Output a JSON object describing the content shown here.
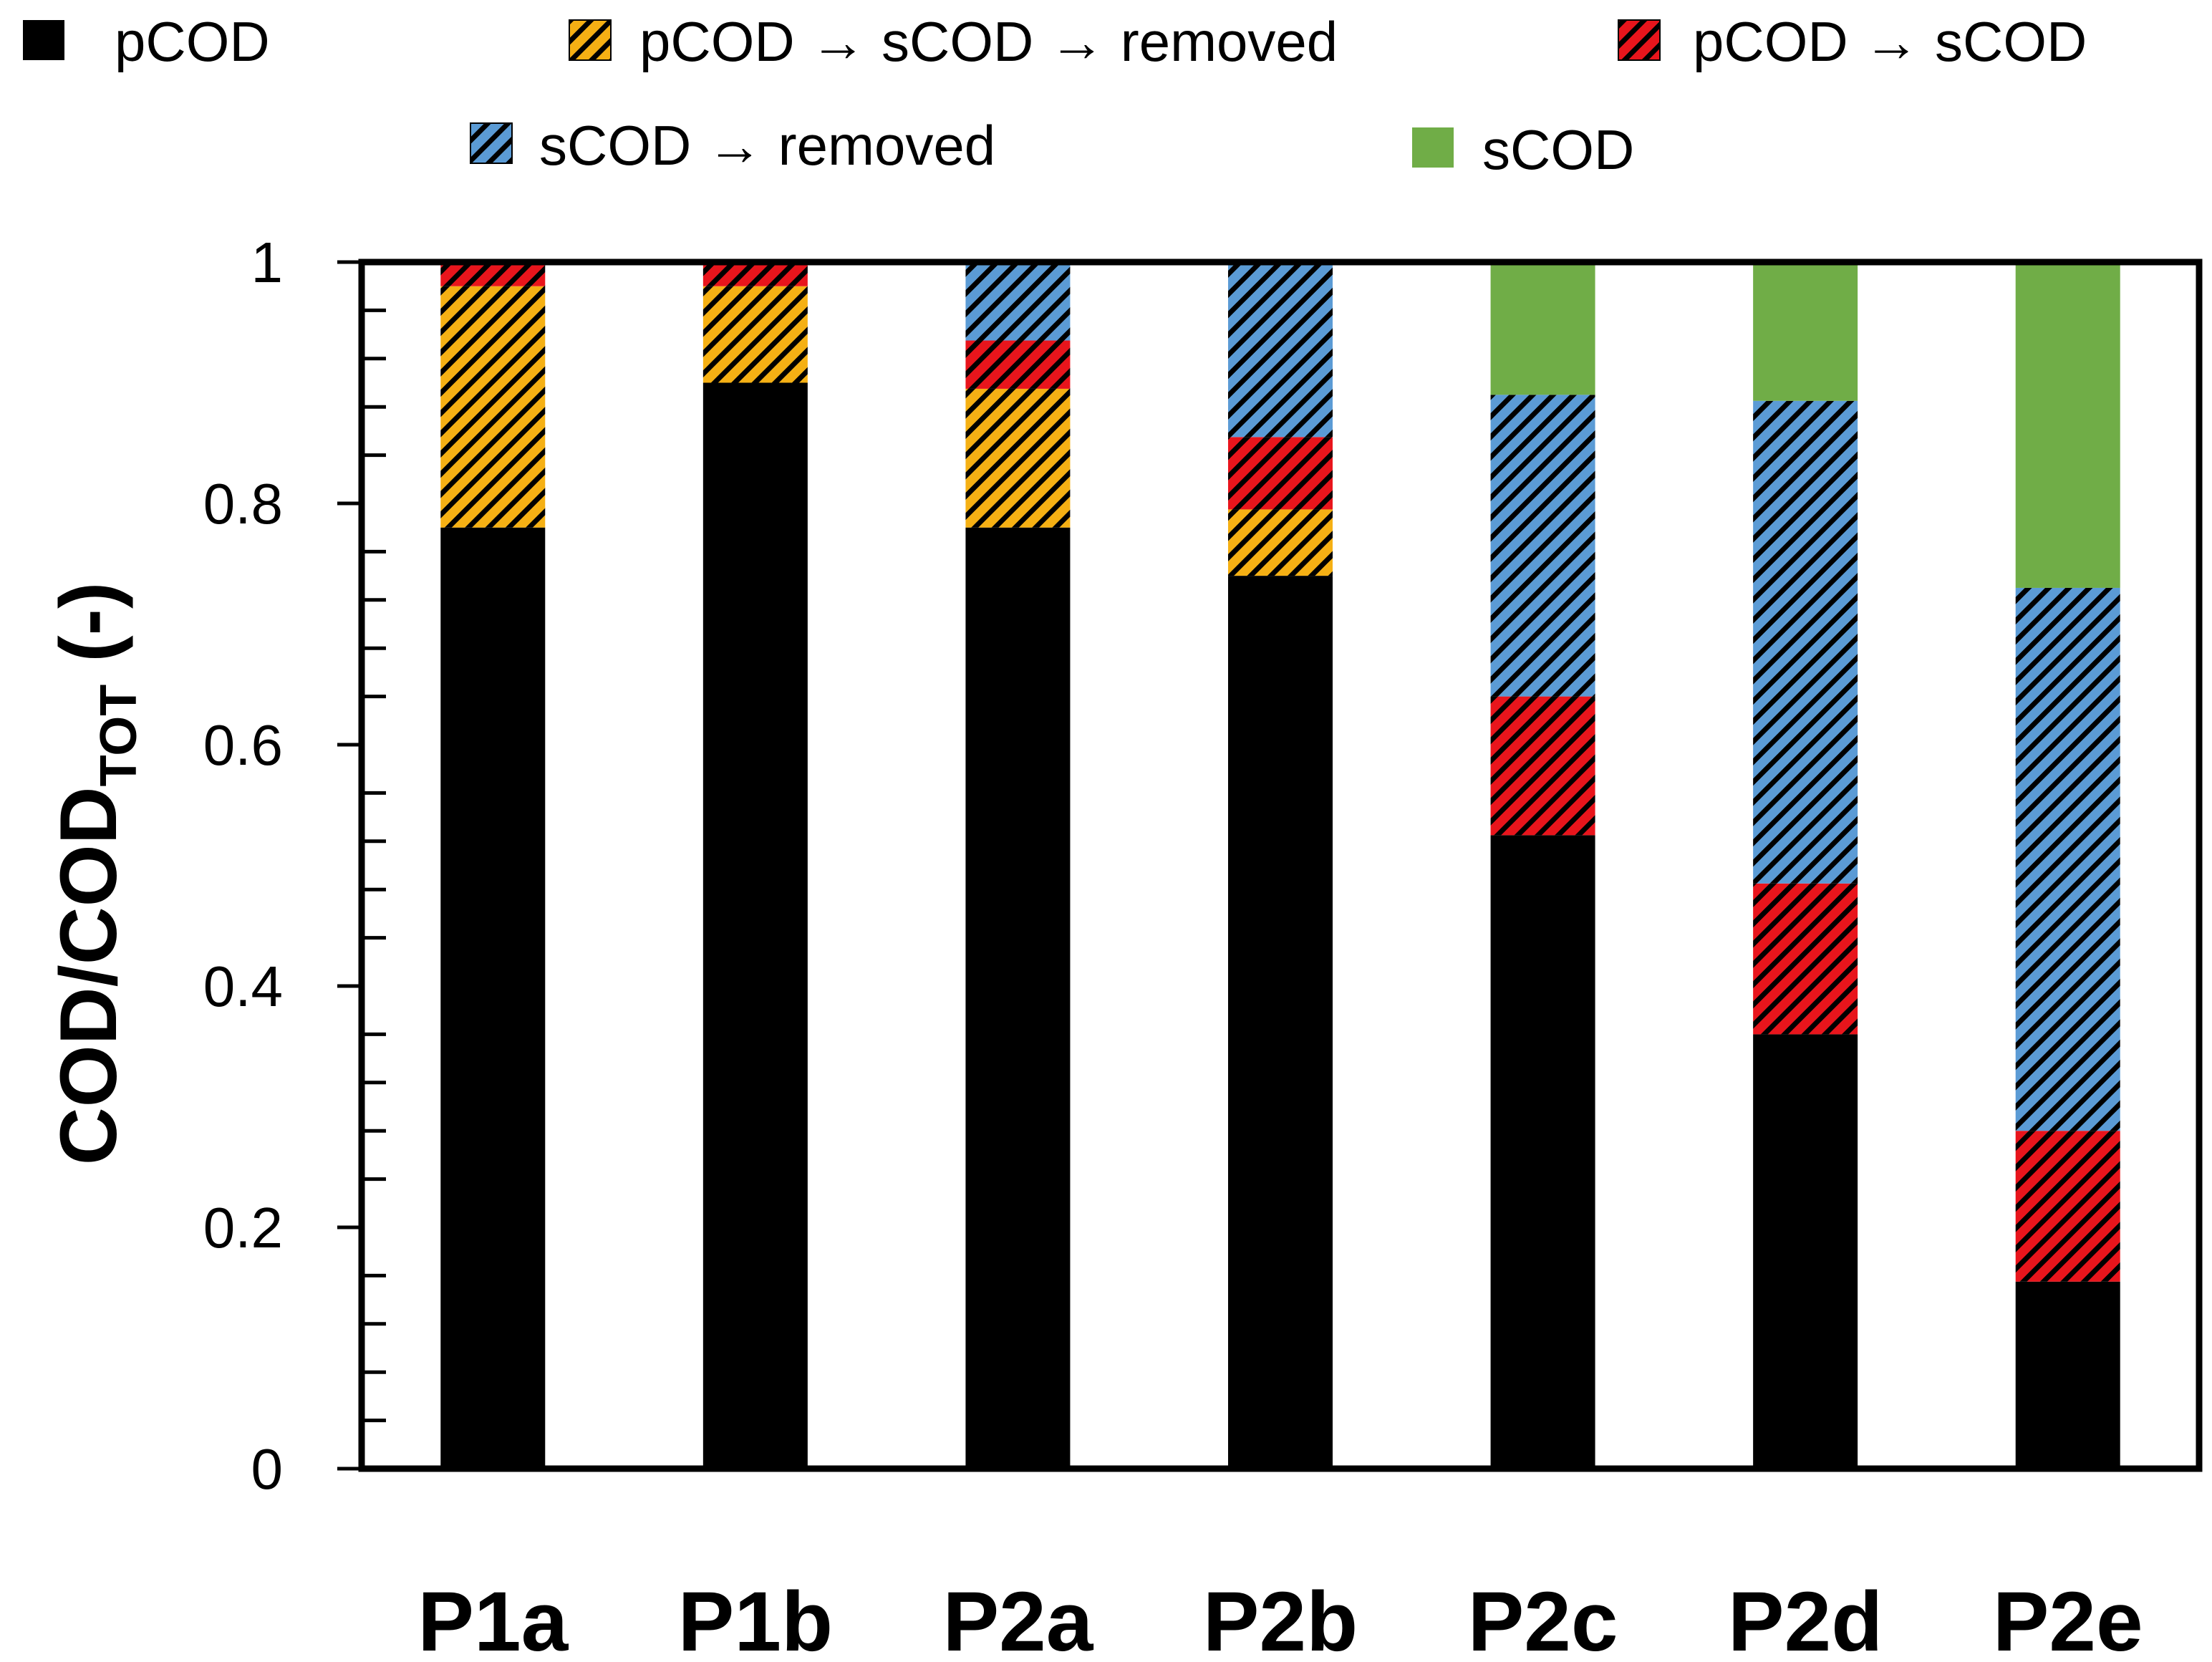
{
  "chart_data": {
    "type": "bar",
    "stacked": true,
    "categories": [
      "P1a",
      "P1b",
      "P2a",
      "P2b",
      "P2c",
      "P2d",
      "P2e"
    ],
    "series": [
      {
        "name": "pCOD",
        "values": [
          0.78,
          0.9,
          0.78,
          0.74,
          0.525,
          0.36,
          0.155
        ],
        "color": "#000000",
        "pattern": "solid"
      },
      {
        "name": "pCOD → sCOD → removed",
        "values": [
          0.2,
          0.08,
          0.115,
          0.055,
          0.0,
          0.0,
          0.0
        ],
        "color": "#f5b014",
        "pattern": "hatch"
      },
      {
        "name": "pCOD → sCOD",
        "values": [
          0.02,
          0.02,
          0.04,
          0.06,
          0.115,
          0.125,
          0.125
        ],
        "color": "#e8151c",
        "pattern": "hatch"
      },
      {
        "name": "sCOD → removed",
        "values": [
          0.0,
          0.0,
          0.065,
          0.145,
          0.25,
          0.4,
          0.45
        ],
        "color": "#5b9bd5",
        "pattern": "hatch"
      },
      {
        "name": "sCOD",
        "values": [
          0.0,
          0.0,
          0.0,
          0.0,
          0.11,
          0.115,
          0.27
        ],
        "color": "#70ad47",
        "pattern": "solid"
      }
    ],
    "legend": {
      "row1": [
        "pCOD",
        "pCOD → sCOD → removed",
        "pCOD → sCOD"
      ],
      "row2": [
        "sCOD → removed",
        "sCOD"
      ],
      "placement": "top"
    },
    "title": "",
    "xlabel": "",
    "ylabel": "COD/COD",
    "ylabel_subscript": "TOT",
    "ylabel_suffix": " (-)",
    "ylim": [
      0,
      1
    ],
    "yticks": [
      0,
      0.2,
      0.4,
      0.6,
      0.8,
      1
    ],
    "ytick_labels": [
      "0",
      "0.2",
      "0.4",
      "0.6",
      "0.8",
      "1"
    ],
    "grid": false
  }
}
